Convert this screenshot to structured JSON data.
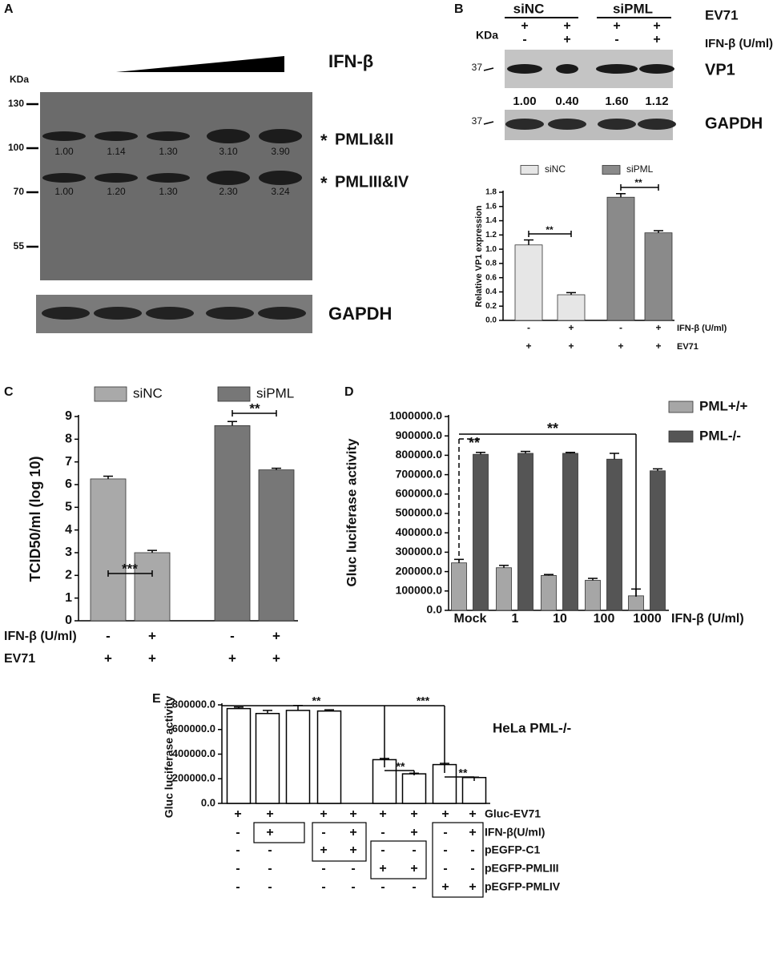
{
  "panel_labels": [
    "A",
    "B",
    "C",
    "D",
    "E"
  ],
  "blot_a": {
    "treatment": "IFN-β",
    "kda_label": "KDa",
    "markers": [
      130,
      100,
      70,
      55
    ],
    "bands": [
      {
        "marker": "*",
        "label": "PMLI&II",
        "values": [
          "1.00",
          "1.14",
          "1.30",
          "3.10",
          "3.90"
        ]
      },
      {
        "marker": "*",
        "label": "PMLIII&IV",
        "values": [
          "1.00",
          "1.20",
          "1.30",
          "2.30",
          "3.24"
        ]
      }
    ],
    "loading_control": "GAPDH"
  },
  "blot_b": {
    "groups": [
      "siNC",
      "siPML"
    ],
    "kda_label": "KDa",
    "rows": [
      {
        "label": "EV71",
        "cells": [
          "+",
          "+",
          "+",
          "+"
        ]
      },
      {
        "label": "IFN-β (U/ml)",
        "cells": [
          "-",
          "+",
          "-",
          "+"
        ]
      }
    ],
    "marker": 37,
    "blots": [
      "VP1",
      "GAPDH"
    ],
    "vp1_values": [
      "1.00",
      "0.40",
      "1.60",
      "1.12"
    ]
  },
  "chart_data": [
    {
      "type": "bar",
      "ylabel": "Relative VP1 expression",
      "ylim": [
        0,
        1.8
      ],
      "yticks": [
        {
          "value": 0,
          "label": "0.0"
        },
        0.2,
        0.4,
        0.6,
        0.8,
        {
          "value": 1,
          "label": "1.0"
        },
        1.2,
        1.4,
        1.6,
        1.8
      ],
      "series": [
        {
          "name": "siNC",
          "color": "#e6e6e6",
          "values": [
            1.06,
            0.36,
            null,
            null
          ],
          "errors": [
            0.07,
            0.03,
            null,
            null
          ]
        },
        {
          "name": "siPML",
          "color": "#8a8a8a",
          "values": [
            null,
            null,
            1.73,
            1.23
          ],
          "errors": [
            null,
            null,
            0.05,
            0.03
          ]
        }
      ],
      "annotations": [
        "**",
        "**"
      ],
      "conditions": [
        {
          "label": "IFN-β (U/ml)",
          "cells": [
            "-",
            "+",
            "-",
            "+"
          ]
        },
        {
          "label": "EV71",
          "cells": [
            "+",
            "+",
            "+",
            "+"
          ]
        }
      ]
    },
    {
      "type": "bar",
      "ylabel": "TCID50/ml (log 10)",
      "ylim": [
        0,
        9
      ],
      "yticks": [
        0,
        1,
        2,
        3,
        4,
        5,
        6,
        7,
        8,
        9
      ],
      "series": [
        {
          "name": "siNC",
          "color": "#a9a9a9",
          "values": [
            6.25,
            3.0,
            null,
            null
          ],
          "errors": [
            0.12,
            0.1,
            null,
            null
          ]
        },
        {
          "name": "siPML",
          "color": "#777777",
          "values": [
            null,
            null,
            8.6,
            6.65
          ],
          "errors": [
            null,
            null,
            0.18,
            0.07
          ]
        }
      ],
      "annotations": [
        "***",
        "**"
      ],
      "conditions": [
        {
          "label": "IFN-β (U/ml)",
          "cells": [
            "-",
            "+",
            "-",
            "+"
          ]
        },
        {
          "label": "EV71",
          "cells": [
            "+",
            "+",
            "+",
            "+"
          ]
        }
      ]
    },
    {
      "type": "bar",
      "ylabel": "Gluc luciferase activity",
      "xlabel": "IFN-β (U/ml)",
      "categories": [
        "Mock",
        "1",
        "10",
        "100",
        "1000"
      ],
      "ylim": [
        0,
        1000000
      ],
      "yticks": [
        {
          "value": 0,
          "label": "0.0"
        },
        {
          "value": 100000,
          "label": "100000.0"
        },
        {
          "value": 200000,
          "label": "200000.0"
        },
        {
          "value": 300000,
          "label": "300000.0"
        },
        {
          "value": 400000,
          "label": "400000.0"
        },
        {
          "value": 500000,
          "label": "500000.0"
        },
        {
          "value": 600000,
          "label": "600000.0"
        },
        {
          "value": 700000,
          "label": "700000.0"
        },
        {
          "value": 800000,
          "label": "800000.0"
        },
        {
          "value": 900000,
          "label": "900000.0"
        },
        {
          "value": 1000000,
          "label": "1000000.0"
        }
      ],
      "series": [
        {
          "name": "PML+/+",
          "color": "#a6a6a6",
          "values": [
            245000,
            220000,
            180000,
            155000,
            75000
          ],
          "errors": [
            18000,
            12000,
            5000,
            10000,
            35000
          ]
        },
        {
          "name": "PML-/-",
          "color": "#555555",
          "values": [
            805000,
            810000,
            810000,
            780000,
            720000
          ],
          "errors": [
            10000,
            10000,
            5000,
            30000,
            10000
          ]
        }
      ],
      "annotations": [
        "**",
        "**"
      ]
    },
    {
      "type": "bar",
      "title": "HeLa PML-/-",
      "ylabel": "Gluc luciferase activity",
      "ylim": [
        0,
        800000
      ],
      "yticks": [
        {
          "value": 0,
          "label": "0.0"
        },
        {
          "value": 200000,
          "label": "200000.0"
        },
        {
          "value": 400000,
          "label": "400000.0"
        },
        {
          "value": 600000,
          "label": "600000.0"
        },
        {
          "value": 800000,
          "label": "800000.0"
        }
      ],
      "series": [
        {
          "color": "#ffffff",
          "values": [
            770000,
            730000,
            755000,
            750000,
            355000,
            240000,
            315000,
            210000
          ],
          "errors": [
            12000,
            25000,
            40000,
            10000,
            10000,
            5000,
            10000,
            3000
          ]
        }
      ],
      "annotations": [
        "**",
        "***",
        "**",
        "**"
      ],
      "conditions": [
        {
          "label": "Gluc-EV71",
          "cells": [
            "+",
            "+",
            "+",
            "+",
            "+",
            "+",
            "+",
            "+"
          ]
        },
        {
          "label": "IFN-β(U/ml)",
          "cells": [
            "-",
            "+",
            "-",
            "+",
            "-",
            "+",
            "-",
            "+"
          ]
        },
        {
          "label": "pEGFP-C1",
          "cells": [
            "-",
            "-",
            "+",
            "+",
            "-",
            "-",
            "-",
            "-"
          ]
        },
        {
          "label": "pEGFP-PMLIII",
          "cells": [
            "-",
            "-",
            "-",
            "-",
            "+",
            "+",
            "-",
            "-"
          ]
        },
        {
          "label": "pEGFP-PMLIV",
          "cells": [
            "-",
            "-",
            "-",
            "-",
            "-",
            "-",
            "+",
            "+"
          ]
        }
      ]
    }
  ]
}
